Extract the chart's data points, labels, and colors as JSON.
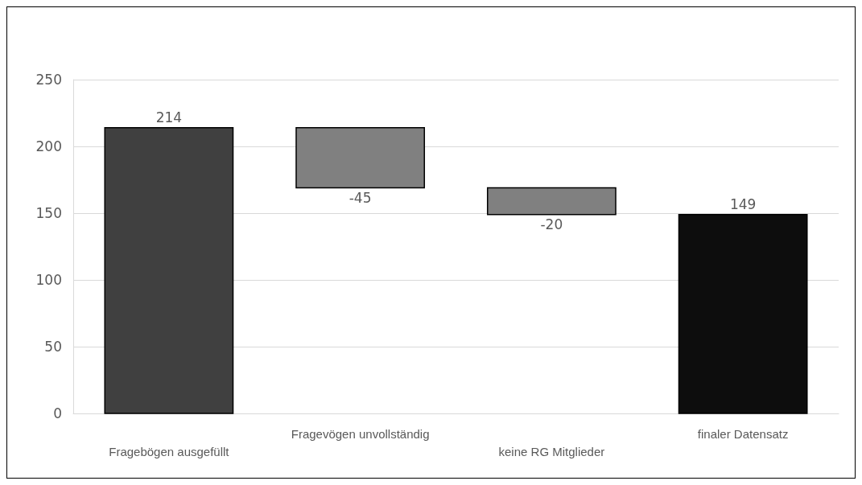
{
  "chart_data": {
    "type": "bar",
    "categories": [
      "Fragebögen ausgefüllt",
      "Fragevögen unvollständig",
      "keine RG Mitglieder",
      "finaler Datensatz"
    ],
    "values": [
      214,
      -45,
      -20,
      149
    ],
    "base": [
      0,
      214,
      169,
      0
    ],
    "colors": [
      "#404040",
      "#808080",
      "#808080",
      "#0d0d0d"
    ],
    "ylim": [
      0,
      250
    ],
    "yticks": [
      0,
      50,
      100,
      150,
      200,
      250
    ],
    "grid": "y",
    "data_labels": true
  }
}
